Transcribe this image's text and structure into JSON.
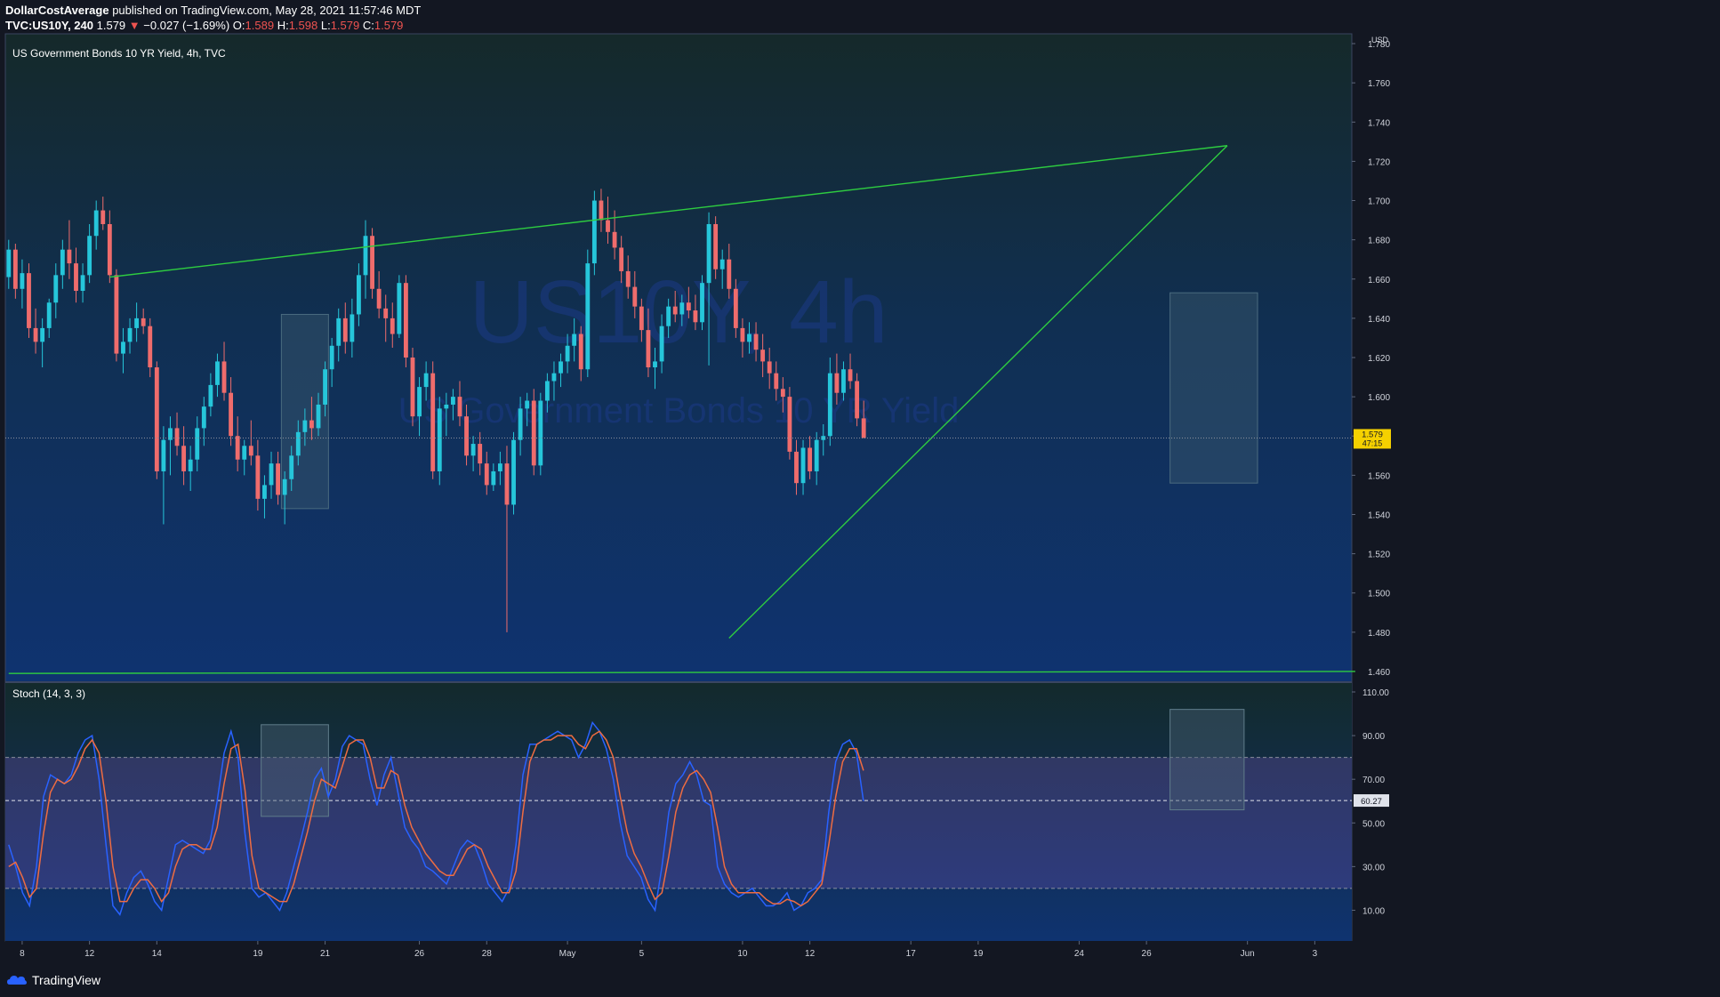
{
  "header": {
    "author": "DollarCostAverage",
    "published_text": "published on TradingView.com, May 28, 2021 11:57:46 MDT",
    "symbol": "TVC:US10Y, 240",
    "last": "1.579",
    "change_arrow": "▼",
    "change": "−0.027 (−1.69%)",
    "o_label": "O:",
    "o": "1.589",
    "h_label": "H:",
    "h": "1.598",
    "l_label": "L:",
    "l": "1.579",
    "c_label": "C:",
    "c": "1.579"
  },
  "chart_data": [
    {
      "type": "candlestick",
      "title": "US Government Bonds 10 YR Yield, 4h, TVC",
      "watermark_symbol": "US10Y, 4h",
      "watermark_name": "US Government Bonds 10 YR Yield",
      "currency": "USD",
      "ylim": [
        1.455,
        1.785
      ],
      "y_ticks": [
        "1.780",
        "1.760",
        "1.740",
        "1.720",
        "1.700",
        "1.680",
        "1.660",
        "1.640",
        "1.620",
        "1.600",
        "1.580",
        "1.560",
        "1.540",
        "1.520",
        "1.500",
        "1.480",
        "1.460"
      ],
      "x_ticks": [
        "8",
        "12",
        "14",
        "19",
        "21",
        "26",
        "28",
        "May",
        "5",
        "10",
        "12",
        "17",
        "19",
        "24",
        "26",
        "Jun",
        "3"
      ],
      "last_price_label": "1.579",
      "countdown_label": "47:15",
      "last_value": 1.579,
      "colors": {
        "up": "#26c6da",
        "down": "#ef6c6c",
        "trendline": "#2ecc40",
        "box": "#2a4a5c",
        "label_bg": "#f5d100"
      },
      "ohlc": [
        [
          1.661,
          1.68,
          1.655,
          1.675
        ],
        [
          1.675,
          1.678,
          1.65,
          1.655
        ],
        [
          1.655,
          1.67,
          1.645,
          1.663
        ],
        [
          1.663,
          1.668,
          1.63,
          1.635
        ],
        [
          1.635,
          1.645,
          1.622,
          1.628
        ],
        [
          1.628,
          1.64,
          1.615,
          1.635
        ],
        [
          1.635,
          1.65,
          1.63,
          1.648
        ],
        [
          1.648,
          1.668,
          1.64,
          1.662
        ],
        [
          1.662,
          1.68,
          1.655,
          1.675
        ],
        [
          1.675,
          1.69,
          1.66,
          1.668
        ],
        [
          1.668,
          1.676,
          1.648,
          1.654
        ],
        [
          1.654,
          1.668,
          1.648,
          1.662
        ],
        [
          1.662,
          1.688,
          1.658,
          1.682
        ],
        [
          1.682,
          1.7,
          1.675,
          1.695
        ],
        [
          1.695,
          1.702,
          1.685,
          1.688
        ],
        [
          1.688,
          1.695,
          1.658,
          1.662
        ],
        [
          1.662,
          1.665,
          1.618,
          1.622
        ],
        [
          1.622,
          1.635,
          1.612,
          1.628
        ],
        [
          1.628,
          1.64,
          1.622,
          1.635
        ],
        [
          1.635,
          1.648,
          1.628,
          1.64
        ],
        [
          1.64,
          1.645,
          1.632,
          1.636
        ],
        [
          1.636,
          1.64,
          1.61,
          1.615
        ],
        [
          1.615,
          1.618,
          1.558,
          1.562
        ],
        [
          1.562,
          1.585,
          1.535,
          1.578
        ],
        [
          1.578,
          1.59,
          1.56,
          1.584
        ],
        [
          1.584,
          1.592,
          1.57,
          1.575
        ],
        [
          1.575,
          1.585,
          1.555,
          1.562
        ],
        [
          1.562,
          1.575,
          1.552,
          1.568
        ],
        [
          1.568,
          1.59,
          1.562,
          1.584
        ],
        [
          1.584,
          1.6,
          1.575,
          1.595
        ],
        [
          1.595,
          1.612,
          1.59,
          1.606
        ],
        [
          1.606,
          1.622,
          1.6,
          1.618
        ],
        [
          1.618,
          1.628,
          1.598,
          1.602
        ],
        [
          1.602,
          1.61,
          1.575,
          1.58
        ],
        [
          1.58,
          1.59,
          1.562,
          1.568
        ],
        [
          1.568,
          1.578,
          1.56,
          1.575
        ],
        [
          1.575,
          1.588,
          1.565,
          1.57
        ],
        [
          1.57,
          1.578,
          1.542,
          1.548
        ],
        [
          1.548,
          1.56,
          1.538,
          1.555
        ],
        [
          1.555,
          1.572,
          1.548,
          1.566
        ],
        [
          1.566,
          1.572,
          1.545,
          1.55
        ],
        [
          1.55,
          1.562,
          1.535,
          1.558
        ],
        [
          1.558,
          1.575,
          1.552,
          1.57
        ],
        [
          1.57,
          1.588,
          1.565,
          1.582
        ],
        [
          1.582,
          1.594,
          1.575,
          1.588
        ],
        [
          1.588,
          1.6,
          1.578,
          1.584
        ],
        [
          1.584,
          1.602,
          1.58,
          1.596
        ],
        [
          1.596,
          1.618,
          1.59,
          1.614
        ],
        [
          1.614,
          1.63,
          1.605,
          1.626
        ],
        [
          1.626,
          1.645,
          1.618,
          1.64
        ],
        [
          1.64,
          1.648,
          1.622,
          1.628
        ],
        [
          1.628,
          1.65,
          1.62,
          1.642
        ],
        [
          1.642,
          1.668,
          1.636,
          1.662
        ],
        [
          1.662,
          1.69,
          1.65,
          1.682
        ],
        [
          1.682,
          1.686,
          1.65,
          1.655
        ],
        [
          1.655,
          1.664,
          1.64,
          1.645
        ],
        [
          1.645,
          1.652,
          1.628,
          1.64
        ],
        [
          1.64,
          1.648,
          1.625,
          1.632
        ],
        [
          1.632,
          1.662,
          1.63,
          1.658
        ],
        [
          1.658,
          1.662,
          1.615,
          1.62
        ],
        [
          1.62,
          1.625,
          1.585,
          1.59
        ],
        [
          1.59,
          1.61,
          1.58,
          1.605
        ],
        [
          1.605,
          1.618,
          1.598,
          1.612
        ],
        [
          1.612,
          1.618,
          1.558,
          1.562
        ],
        [
          1.562,
          1.6,
          1.555,
          1.594
        ],
        [
          1.594,
          1.602,
          1.58,
          1.596
        ],
        [
          1.596,
          1.604,
          1.588,
          1.6
        ],
        [
          1.6,
          1.608,
          1.585,
          1.59
        ],
        [
          1.59,
          1.596,
          1.565,
          1.57
        ],
        [
          1.57,
          1.58,
          1.562,
          1.576
        ],
        [
          1.576,
          1.582,
          1.56,
          1.566
        ],
        [
          1.566,
          1.572,
          1.55,
          1.555
        ],
        [
          1.555,
          1.566,
          1.552,
          1.562
        ],
        [
          1.562,
          1.572,
          1.555,
          1.566
        ],
        [
          1.566,
          1.575,
          1.48,
          1.545
        ],
        [
          1.545,
          1.582,
          1.54,
          1.578
        ],
        [
          1.578,
          1.6,
          1.57,
          1.594
        ],
        [
          1.594,
          1.602,
          1.585,
          1.598
        ],
        [
          1.598,
          1.604,
          1.56,
          1.565
        ],
        [
          1.565,
          1.602,
          1.56,
          1.598
        ],
        [
          1.598,
          1.612,
          1.592,
          1.608
        ],
        [
          1.608,
          1.618,
          1.598,
          1.612
        ],
        [
          1.612,
          1.622,
          1.605,
          1.618
        ],
        [
          1.618,
          1.632,
          1.612,
          1.626
        ],
        [
          1.626,
          1.64,
          1.618,
          1.632
        ],
        [
          1.632,
          1.636,
          1.608,
          1.614
        ],
        [
          1.614,
          1.675,
          1.61,
          1.668
        ],
        [
          1.668,
          1.705,
          1.662,
          1.7
        ],
        [
          1.7,
          1.706,
          1.684,
          1.69
        ],
        [
          1.69,
          1.702,
          1.678,
          1.684
        ],
        [
          1.684,
          1.695,
          1.67,
          1.676
        ],
        [
          1.676,
          1.682,
          1.658,
          1.664
        ],
        [
          1.664,
          1.672,
          1.65,
          1.656
        ],
        [
          1.656,
          1.664,
          1.64,
          1.646
        ],
        [
          1.646,
          1.65,
          1.628,
          1.634
        ],
        [
          1.634,
          1.645,
          1.61,
          1.615
        ],
        [
          1.615,
          1.625,
          1.604,
          1.618
        ],
        [
          1.618,
          1.642,
          1.612,
          1.636
        ],
        [
          1.636,
          1.65,
          1.63,
          1.646
        ],
        [
          1.646,
          1.654,
          1.638,
          1.642
        ],
        [
          1.642,
          1.652,
          1.636,
          1.648
        ],
        [
          1.648,
          1.656,
          1.64,
          1.644
        ],
        [
          1.644,
          1.652,
          1.634,
          1.638
        ],
        [
          1.638,
          1.662,
          1.634,
          1.658
        ],
        [
          1.658,
          1.694,
          1.616,
          1.688
        ],
        [
          1.688,
          1.692,
          1.66,
          1.665
        ],
        [
          1.665,
          1.675,
          1.655,
          1.67
        ],
        [
          1.67,
          1.678,
          1.65,
          1.655
        ],
        [
          1.655,
          1.66,
          1.63,
          1.635
        ],
        [
          1.635,
          1.64,
          1.62,
          1.628
        ],
        [
          1.628,
          1.638,
          1.622,
          1.632
        ],
        [
          1.632,
          1.638,
          1.618,
          1.624
        ],
        [
          1.624,
          1.632,
          1.61,
          1.618
        ],
        [
          1.618,
          1.625,
          1.604,
          1.612
        ],
        [
          1.612,
          1.618,
          1.598,
          1.604
        ],
        [
          1.604,
          1.61,
          1.592,
          1.6
        ],
        [
          1.6,
          1.605,
          1.568,
          1.572
        ],
        [
          1.572,
          1.578,
          1.55,
          1.556
        ],
        [
          1.556,
          1.578,
          1.55,
          1.574
        ],
        [
          1.574,
          1.58,
          1.558,
          1.562
        ],
        [
          1.562,
          1.582,
          1.555,
          1.578
        ],
        [
          1.578,
          1.586,
          1.57,
          1.58
        ],
        [
          1.58,
          1.62,
          1.575,
          1.612
        ],
        [
          1.612,
          1.622,
          1.596,
          1.602
        ],
        [
          1.602,
          1.618,
          1.598,
          1.614
        ],
        [
          1.614,
          1.622,
          1.604,
          1.608
        ],
        [
          1.608,
          1.612,
          1.585,
          1.589
        ],
        [
          1.589,
          1.598,
          1.579,
          1.579
        ]
      ],
      "trendlines": [
        {
          "name": "upper-trendline",
          "from": [
            15,
            1.661
          ],
          "to": [
            181,
            1.728
          ]
        },
        {
          "name": "rising-trendline",
          "from": [
            107,
            1.477
          ],
          "to": [
            181,
            1.728
          ]
        },
        {
          "name": "support-line",
          "from": [
            0,
            1.459
          ],
          "to": [
            200,
            1.46
          ]
        }
      ],
      "boxes": [
        {
          "name": "highlight-box-1",
          "x0": 41,
          "x1": 47,
          "y0": 1.543,
          "y1": 1.642
        },
        {
          "name": "highlight-box-2",
          "x0": 173,
          "x1": 185,
          "y0": 1.556,
          "y1": 1.653
        }
      ]
    },
    {
      "type": "line",
      "title": "Stoch (14, 3, 3)",
      "ylim": [
        0,
        110
      ],
      "y_ticks": [
        "110.00",
        "90.00",
        "70.00",
        "50.00",
        "30.00",
        "10.00"
      ],
      "bands": [
        20,
        80
      ],
      "value_label": "60.27",
      "series": [
        {
          "color": "#2962ff",
          "values": [
            40,
            30,
            18,
            12,
            30,
            62,
            72,
            70,
            68,
            72,
            82,
            88,
            90,
            70,
            40,
            12,
            8,
            18,
            25,
            28,
            22,
            14,
            10,
            25,
            40,
            42,
            40,
            38,
            36,
            42,
            60,
            82,
            92,
            80,
            45,
            20,
            16,
            18,
            14,
            10,
            18,
            30,
            42,
            55,
            70,
            75,
            62,
            70,
            85,
            90,
            88,
            86,
            70,
            58,
            72,
            80,
            64,
            48,
            42,
            38,
            30,
            28,
            25,
            22,
            30,
            38,
            42,
            40,
            32,
            22,
            18,
            14,
            20,
            40,
            72,
            86,
            86,
            88,
            90,
            92,
            90,
            88,
            80,
            86,
            96,
            92,
            84,
            70,
            50,
            35,
            30,
            25,
            15,
            10,
            30,
            55,
            68,
            72,
            78,
            72,
            60,
            58,
            30,
            22,
            18,
            16,
            18,
            20,
            16,
            12,
            12,
            14,
            18,
            10,
            12,
            18,
            20,
            24,
            55,
            78,
            86,
            88,
            82,
            60
          ]
        },
        {
          "color": "#ef6c41",
          "values": [
            30,
            32,
            25,
            16,
            20,
            45,
            64,
            70,
            68,
            70,
            76,
            84,
            88,
            82,
            60,
            30,
            14,
            14,
            20,
            24,
            24,
            20,
            14,
            18,
            30,
            38,
            40,
            40,
            38,
            38,
            48,
            68,
            84,
            86,
            65,
            35,
            20,
            18,
            16,
            14,
            14,
            22,
            34,
            46,
            60,
            70,
            68,
            66,
            76,
            86,
            88,
            88,
            80,
            66,
            66,
            74,
            72,
            58,
            48,
            42,
            36,
            32,
            28,
            26,
            26,
            32,
            38,
            40,
            38,
            30,
            24,
            18,
            18,
            28,
            55,
            78,
            86,
            88,
            88,
            90,
            90,
            90,
            86,
            84,
            90,
            92,
            88,
            80,
            62,
            46,
            36,
            30,
            22,
            15,
            18,
            35,
            55,
            66,
            72,
            74,
            70,
            64,
            48,
            30,
            22,
            18,
            18,
            18,
            18,
            15,
            13,
            13,
            15,
            14,
            12,
            14,
            18,
            22,
            40,
            62,
            78,
            84,
            84,
            74
          ]
        }
      ],
      "boxes": [
        {
          "name": "stoch-box-1",
          "x0": 38,
          "x1": 47,
          "y0": 53,
          "y1": 95
        },
        {
          "name": "stoch-box-2",
          "x0": 173,
          "x1": 183,
          "y0": 56,
          "y1": 102
        }
      ]
    }
  ],
  "footer": {
    "brand": "TradingView"
  }
}
